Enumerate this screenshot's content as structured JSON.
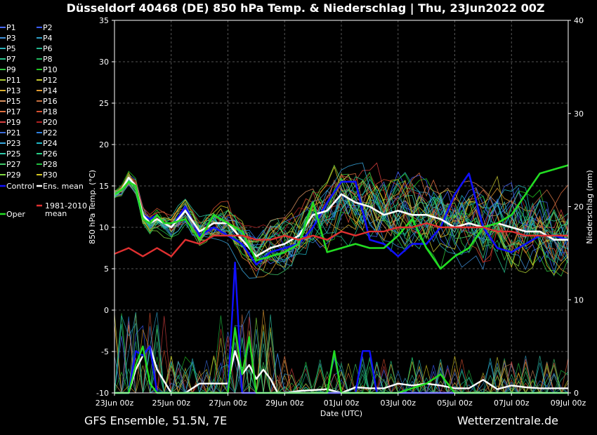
{
  "chart_data": {
    "type": "line",
    "title": "Düsseldorf 40468 (DE)  850 hPa Temp. & Niederschlag | Thu, 23Jun2022 00Z",
    "xlabel": "Date (UTC)",
    "ylabel": "850 hPa Temp. (°C)",
    "ylabel_right": "Niederschlag (mm)",
    "xlim": [
      0,
      16
    ],
    "ylim": [
      -10,
      35
    ],
    "ylim_right": [
      0,
      40
    ],
    "y_ticks": [
      35,
      30,
      25,
      20,
      15,
      10,
      5,
      0,
      -5,
      -10
    ],
    "y_ticks_right": [
      40,
      30,
      20,
      10,
      0
    ],
    "x_ticks": [
      {
        "x": 0,
        "label": "23Jun 00z"
      },
      {
        "x": 2,
        "label": "25Jun 00z"
      },
      {
        "x": 4,
        "label": "27Jun 00z"
      },
      {
        "x": 6,
        "label": "29Jun 00z"
      },
      {
        "x": 8,
        "label": "01Jul 00z"
      },
      {
        "x": 10,
        "label": "03Jul 00z"
      },
      {
        "x": 12,
        "label": "05Jul 00z"
      },
      {
        "x": 14,
        "label": "07Jul 00z"
      },
      {
        "x": 16,
        "label": "09Jul 00z"
      }
    ],
    "grid": true,
    "legend_position": "left",
    "members": [
      {
        "name": "P1",
        "color": "#4a6bff"
      },
      {
        "name": "P2",
        "color": "#3a5cff"
      },
      {
        "name": "P3",
        "color": "#3f8fd8"
      },
      {
        "name": "P4",
        "color": "#2f9fc8"
      },
      {
        "name": "P5",
        "color": "#2ab0b8"
      },
      {
        "name": "P6",
        "color": "#22b890"
      },
      {
        "name": "P7",
        "color": "#26c08a"
      },
      {
        "name": "P8",
        "color": "#20b860"
      },
      {
        "name": "P9",
        "color": "#30c840"
      },
      {
        "name": "P10",
        "color": "#22c822"
      },
      {
        "name": "P11",
        "color": "#a8c830"
      },
      {
        "name": "P12",
        "color": "#c8c830"
      },
      {
        "name": "P13",
        "color": "#d8b030"
      },
      {
        "name": "P14",
        "color": "#e09a30"
      },
      {
        "name": "P15",
        "color": "#d89060"
      },
      {
        "name": "P16",
        "color": "#c87040"
      },
      {
        "name": "P17",
        "color": "#e07040"
      },
      {
        "name": "P18",
        "color": "#d85030"
      },
      {
        "name": "P19",
        "color": "#d84040"
      },
      {
        "name": "P20",
        "color": "#b02020"
      },
      {
        "name": "P21",
        "color": "#3a6ad8"
      },
      {
        "name": "P22",
        "color": "#2f80e0"
      },
      {
        "name": "P23",
        "color": "#38a8e0"
      },
      {
        "name": "P24",
        "color": "#20b8c8"
      },
      {
        "name": "P25",
        "color": "#30c8a8"
      },
      {
        "name": "P26",
        "color": "#28d088"
      },
      {
        "name": "P27",
        "color": "#40c868"
      },
      {
        "name": "P28",
        "color": "#20c040"
      },
      {
        "name": "P29",
        "color": "#80d840"
      },
      {
        "name": "P30",
        "color": "#d8c820"
      }
    ],
    "series": [
      {
        "name": "Control",
        "color": "#1010ff",
        "x": [
          0,
          0.25,
          0.5,
          0.75,
          1,
          1.25,
          1.5,
          1.75,
          2,
          2.5,
          3,
          3.5,
          4,
          4.5,
          5,
          5.5,
          6,
          6.5,
          7,
          7.5,
          8,
          8.5,
          9,
          9.5,
          10,
          10.5,
          11,
          11.5,
          12,
          12.5,
          13,
          13.5,
          14,
          14.5,
          15,
          15.5,
          16
        ],
        "values": [
          14,
          14.5,
          16,
          15,
          11.5,
          11,
          11.5,
          10.5,
          10,
          12.5,
          9,
          10,
          9,
          8,
          5.5,
          7,
          7.5,
          8,
          10,
          13,
          15.5,
          15.5,
          8.5,
          8,
          6.5,
          8,
          8,
          10,
          14,
          16.5,
          10,
          7.5,
          7,
          8,
          9,
          9,
          8.5
        ]
      },
      {
        "name": "Ens. mean",
        "color": "#ffffff",
        "x": [
          0,
          0.25,
          0.5,
          0.75,
          1,
          1.25,
          1.5,
          1.75,
          2,
          2.5,
          3,
          3.5,
          4,
          4.5,
          5,
          5.5,
          6,
          6.5,
          7,
          7.5,
          8,
          8.5,
          9,
          9.5,
          10,
          10.5,
          11,
          11.5,
          12,
          12.5,
          13,
          13.5,
          14,
          14.5,
          15,
          15.5,
          16
        ],
        "values": [
          14,
          14.5,
          16,
          15,
          11.5,
          10.5,
          11,
          10.5,
          10,
          12,
          9.5,
          10.5,
          10.5,
          8.5,
          6.5,
          7.5,
          8,
          9,
          11.5,
          12,
          14,
          13,
          12.5,
          11.5,
          12,
          11.5,
          11.5,
          11,
          10,
          10.5,
          10,
          10.5,
          10,
          9.5,
          9.5,
          8.5,
          8.5
        ]
      },
      {
        "name": "Oper",
        "color": "#22dd22",
        "x": [
          0,
          0.25,
          0.5,
          0.75,
          1,
          1.25,
          1.5,
          1.75,
          2,
          2.5,
          3,
          3.5,
          4,
          4.5,
          5,
          5.5,
          6,
          6.5,
          7,
          7.5,
          8,
          8.5,
          9,
          9.5,
          10,
          10.5,
          11,
          11.5,
          12,
          12.5,
          13,
          13.5,
          14,
          14.5,
          15,
          15.5,
          16
        ],
        "values": [
          14,
          14.5,
          15.5,
          15,
          11,
          10.5,
          11.5,
          10.5,
          10.5,
          11,
          8.5,
          11.5,
          10.5,
          9.5,
          6,
          6.5,
          7,
          8,
          13,
          7,
          7.5,
          8,
          7.5,
          7.5,
          9,
          11,
          7.5,
          5,
          6.5,
          7.5,
          10,
          10.5,
          11.5,
          14,
          16.5,
          17,
          17.5
        ]
      },
      {
        "name": "1981-2010 mean",
        "color": "#e03030",
        "x": [
          0,
          0.5,
          1,
          1.5,
          2,
          2.5,
          3,
          3.5,
          4,
          4.5,
          5,
          5.5,
          6,
          6.5,
          7,
          7.5,
          8,
          8.5,
          9,
          9.5,
          10,
          10.5,
          11,
          11.5,
          12,
          12.5,
          13,
          13.5,
          14,
          14.5,
          15,
          15.5,
          16
        ],
        "values": [
          6.8,
          7.5,
          6.5,
          7.5,
          6.5,
          8.5,
          8,
          9,
          9,
          9,
          8.5,
          8.5,
          9,
          8.5,
          9,
          8.5,
          9.5,
          9,
          9.5,
          9.5,
          10,
          10,
          10.5,
          10,
          10,
          10,
          10,
          9.5,
          9.5,
          9,
          9,
          9,
          9
        ]
      }
    ],
    "precip_series": [
      {
        "name": "Ens. mean",
        "color": "#ffffff",
        "x": [
          0,
          0.5,
          0.75,
          1,
          1.25,
          1.5,
          2,
          2.5,
          3,
          3.5,
          4,
          4.25,
          4.5,
          4.75,
          5,
          5.25,
          5.5,
          5.75,
          6,
          6.5,
          7,
          7.5,
          8,
          8.5,
          9,
          9.5,
          10,
          10.5,
          11,
          11.5,
          12,
          12.5,
          13,
          13.5,
          14,
          14.5,
          15,
          15.5,
          16
        ],
        "values": [
          0,
          0,
          2.5,
          4,
          5,
          2.5,
          0,
          0,
          1,
          1,
          1,
          4.5,
          2,
          3,
          1.5,
          2.5,
          1.5,
          0,
          0,
          0.2,
          0.3,
          0.4,
          0,
          0.6,
          0.5,
          0.5,
          1,
          0.8,
          1,
          0.8,
          0.5,
          0.5,
          1.4,
          0.4,
          0.8,
          0.6,
          0.5,
          0.5,
          0.5
        ]
      },
      {
        "name": "Control",
        "color": "#1010ff",
        "x": [
          0,
          0.5,
          0.75,
          1,
          1.25,
          1.5,
          2,
          4,
          4.25,
          4.5,
          6,
          8,
          8.5,
          8.75,
          9,
          9.25,
          10,
          16
        ],
        "values": [
          0,
          0,
          4.5,
          4,
          5,
          0,
          0,
          0,
          14,
          0,
          0,
          0,
          0,
          4.5,
          4.5,
          0,
          0,
          0
        ]
      },
      {
        "name": "Oper",
        "color": "#22dd22",
        "x": [
          0,
          0.5,
          0.75,
          1,
          1.25,
          1.5,
          2,
          4,
          4.25,
          4.5,
          4.75,
          5,
          6,
          7.5,
          7.75,
          8,
          8.5,
          10,
          11,
          11.5,
          12,
          16
        ],
        "values": [
          0,
          0,
          3,
          5,
          1,
          0,
          0,
          0,
          7,
          2,
          6,
          0,
          0,
          0,
          4.5,
          0,
          0,
          0,
          1,
          2,
          0,
          0
        ]
      }
    ]
  },
  "footer": {
    "left": "GFS Ensemble, 51.5N, 7E",
    "right": "Wetterzentrale.de"
  }
}
